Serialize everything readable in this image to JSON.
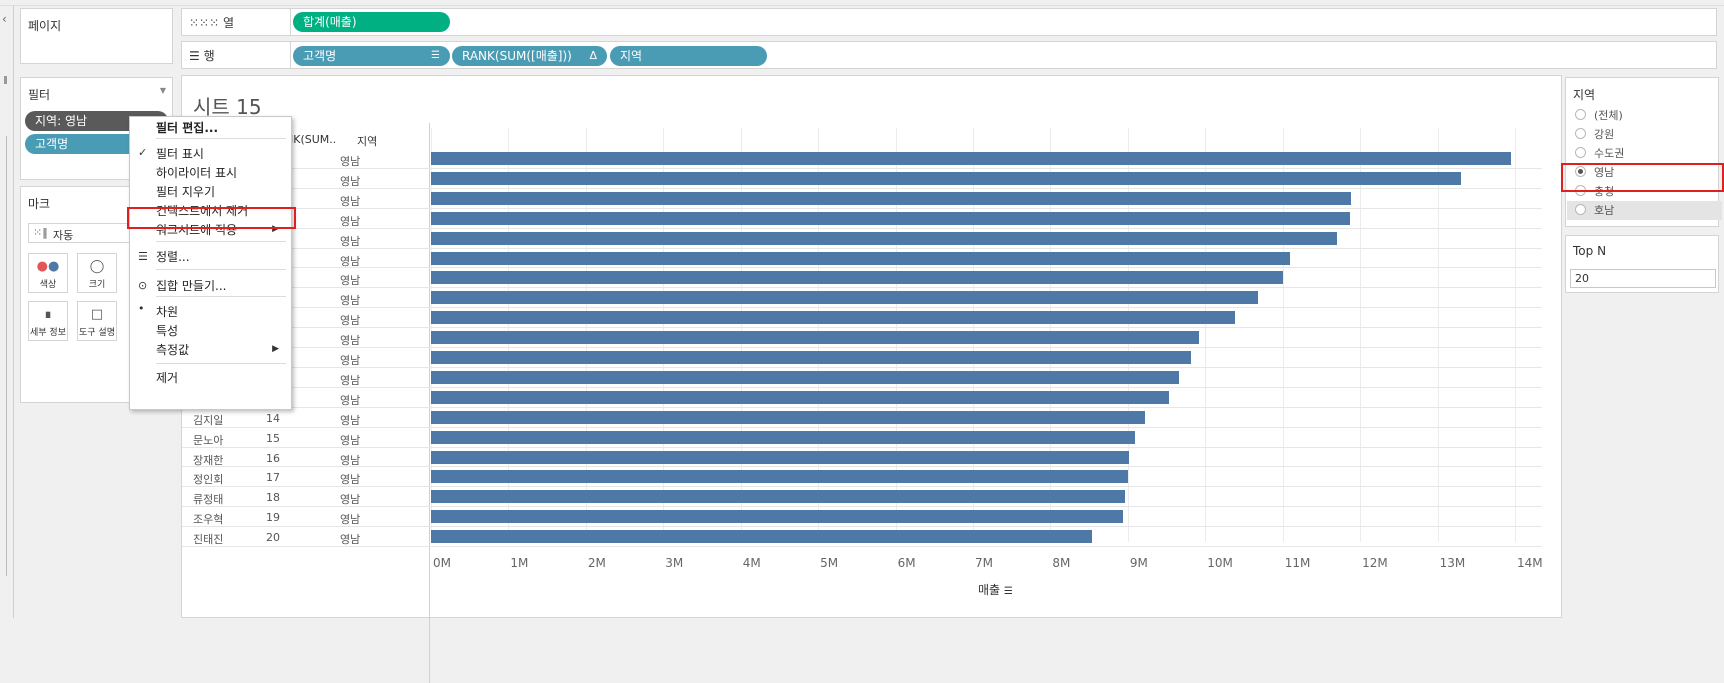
{
  "pages_card": {
    "title": "페이지"
  },
  "columns_shelf": {
    "label": "열",
    "pills": [
      "합계(매출)"
    ]
  },
  "rows_shelf": {
    "label": "행",
    "pills": [
      "고객명",
      "RANK(SUM([매출]))",
      "지역"
    ]
  },
  "filters_card": {
    "title": "필터",
    "pills": [
      "지역: 영남",
      "고객명"
    ]
  },
  "marks_card": {
    "title": "마크",
    "type": "자동",
    "buttons": [
      {
        "label": "색상",
        "icon": "color-icon"
      },
      {
        "label": "크기",
        "icon": "size-icon"
      },
      {
        "label": "세부 정보",
        "icon": "detail-icon"
      },
      {
        "label": "도구 설명",
        "icon": "tooltip-icon"
      }
    ]
  },
  "context_menu": {
    "items": [
      {
        "label": "필터 편집...",
        "bold": true
      },
      {
        "label": "필터 표시",
        "checked": true
      },
      {
        "label": "하이라이터 표시"
      },
      {
        "label": "필터 지우기"
      },
      {
        "label": "컨텍스트에서 제거",
        "highlighted": true
      },
      {
        "label": "워크시트에 적용",
        "submenu": true
      },
      {
        "label": "정렬..."
      },
      {
        "label": "집합 만들기..."
      },
      {
        "label": "차원",
        "selected": true
      },
      {
        "label": "특성"
      },
      {
        "label": "측정값",
        "submenu": true
      },
      {
        "label": "제거"
      }
    ]
  },
  "sheet": {
    "title": "시트 15",
    "column_headers": {
      "rank": "NK(SUM..",
      "region": "지역"
    },
    "axis_title": "매출"
  },
  "chart_data": {
    "type": "bar",
    "orientation": "horizontal",
    "xlabel": "매출",
    "xlim": [
      0,
      14200000
    ],
    "x_ticks": [
      "0M",
      "1M",
      "2M",
      "3M",
      "4M",
      "5M",
      "6M",
      "7M",
      "8M",
      "9M",
      "10M",
      "11M",
      "12M",
      "13M",
      "14M"
    ],
    "rows": [
      {
        "name": "",
        "rank": "",
        "region": "영남",
        "value": 13950000
      },
      {
        "name": "",
        "rank": "",
        "region": "영남",
        "value": 13300000
      },
      {
        "name": "",
        "rank": "",
        "region": "영남",
        "value": 11880000
      },
      {
        "name": "",
        "rank": "",
        "region": "영남",
        "value": 11870000
      },
      {
        "name": "",
        "rank": "",
        "region": "영남",
        "value": 11700000
      },
      {
        "name": "",
        "rank": "",
        "region": "영남",
        "value": 11090000
      },
      {
        "name": "",
        "rank": "",
        "region": "영남",
        "value": 11000000
      },
      {
        "name": "",
        "rank": "",
        "region": "영남",
        "value": 10680000
      },
      {
        "name": "",
        "rank": "",
        "region": "영남",
        "value": 10380000
      },
      {
        "name": "",
        "rank": "",
        "region": "영남",
        "value": 9920000
      },
      {
        "name": "",
        "rank": "",
        "region": "영남",
        "value": 9820000
      },
      {
        "name": "",
        "rank": "",
        "region": "영남",
        "value": 9660000
      },
      {
        "name": "",
        "rank": "",
        "region": "영남",
        "value": 9530000
      },
      {
        "name": "김지일",
        "rank": "14",
        "region": "영남",
        "value": 9220000
      },
      {
        "name": "문노아",
        "rank": "15",
        "region": "영남",
        "value": 9090000
      },
      {
        "name": "장재한",
        "rank": "16",
        "region": "영남",
        "value": 9020000
      },
      {
        "name": "정인회",
        "rank": "17",
        "region": "영남",
        "value": 9000000
      },
      {
        "name": "류정태",
        "rank": "18",
        "region": "영남",
        "value": 8960000
      },
      {
        "name": "조우혁",
        "rank": "19",
        "region": "영남",
        "value": 8940000
      },
      {
        "name": "진태진",
        "rank": "20",
        "region": "영남",
        "value": 8540000
      }
    ]
  },
  "region_filter": {
    "title": "지역",
    "options": [
      {
        "label": "(전체)",
        "selected": false
      },
      {
        "label": "강원",
        "selected": false
      },
      {
        "label": "수도권",
        "selected": false
      },
      {
        "label": "영남",
        "selected": true
      },
      {
        "label": "충청",
        "selected": false
      },
      {
        "label": "호남",
        "selected": false
      }
    ]
  },
  "topn_param": {
    "title": "Top N",
    "value": "20"
  }
}
